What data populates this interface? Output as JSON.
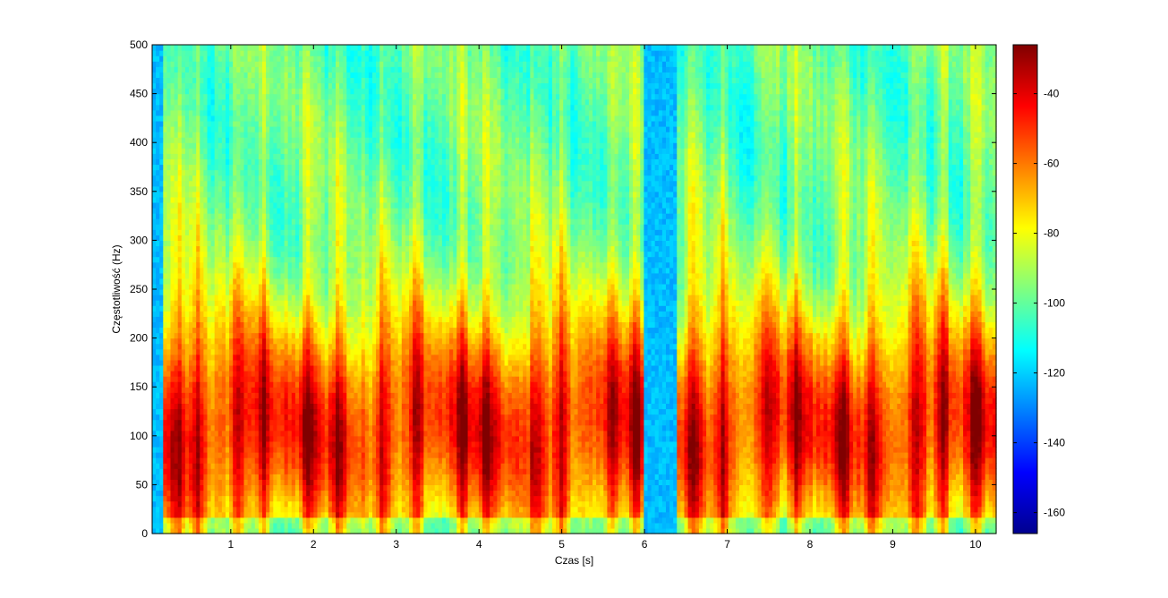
{
  "chart_data": [
    {
      "type": "heatmap",
      "title": "",
      "xlabel": "Czas [s]",
      "ylabel": "Częstotliwość (Hz)",
      "xlim": [
        0.05,
        10.25
      ],
      "ylim": [
        0,
        500
      ],
      "x_ticks": [
        1,
        2,
        3,
        4,
        5,
        6,
        7,
        8,
        9,
        10
      ],
      "y_ticks": [
        0,
        50,
        100,
        150,
        200,
        250,
        300,
        350,
        400,
        450,
        500
      ],
      "colormap": "jet",
      "grid": false,
      "description_values": {
        "high_energy_bursts_time_s": [
          0.35,
          0.6,
          1.1,
          1.4,
          1.95,
          2.3,
          2.85,
          3.25,
          3.8,
          4.1,
          4.7,
          5.0,
          5.6,
          5.9,
          6.6,
          6.95,
          7.5,
          7.85,
          8.4,
          8.75,
          9.3,
          9.6,
          10.0
        ],
        "low_energy_gaps_time_s": [
          [
            0.05,
            0.2
          ],
          [
            6.0,
            6.4
          ]
        ]
      }
    },
    {
      "type": "colorbar",
      "range": [
        -166,
        -26
      ],
      "ticks": [
        -40,
        -60,
        -80,
        -100,
        -120,
        -140,
        -160
      ]
    }
  ]
}
